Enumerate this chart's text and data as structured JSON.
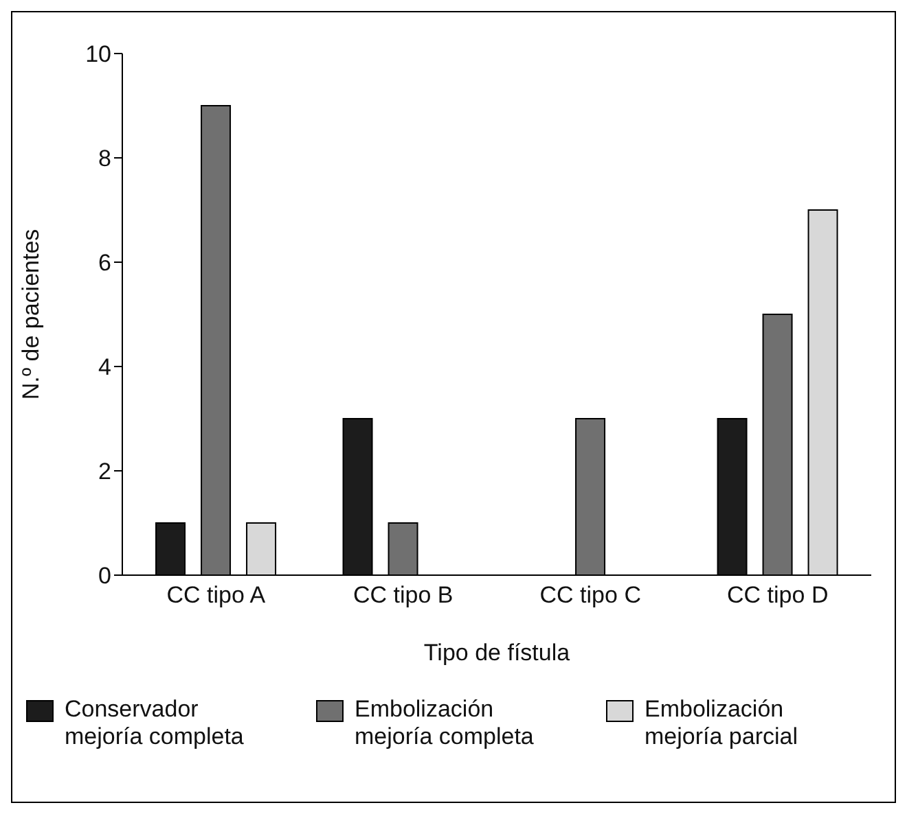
{
  "chart_data": {
    "type": "bar",
    "xlabel": "Tipo de fístula",
    "ylabel": "N.º de pacientes",
    "categories": [
      "CC tipo A",
      "CC tipo B",
      "CC tipo C",
      "CC tipo D"
    ],
    "series": [
      {
        "name": "Conservador mejoría completa",
        "color": "#1c1c1c",
        "values": [
          1,
          3,
          0,
          3
        ]
      },
      {
        "name": "Embolización mejoría completa",
        "color": "#707070",
        "values": [
          9,
          1,
          3,
          5
        ]
      },
      {
        "name": "Embolización mejoría parcial",
        "color": "#d8d8d8",
        "values": [
          1,
          0,
          0,
          7
        ]
      }
    ],
    "ylim": [
      0,
      10
    ],
    "yticks": [
      0,
      2,
      4,
      6,
      8,
      10
    ],
    "grid": false,
    "legend": "bottom"
  }
}
